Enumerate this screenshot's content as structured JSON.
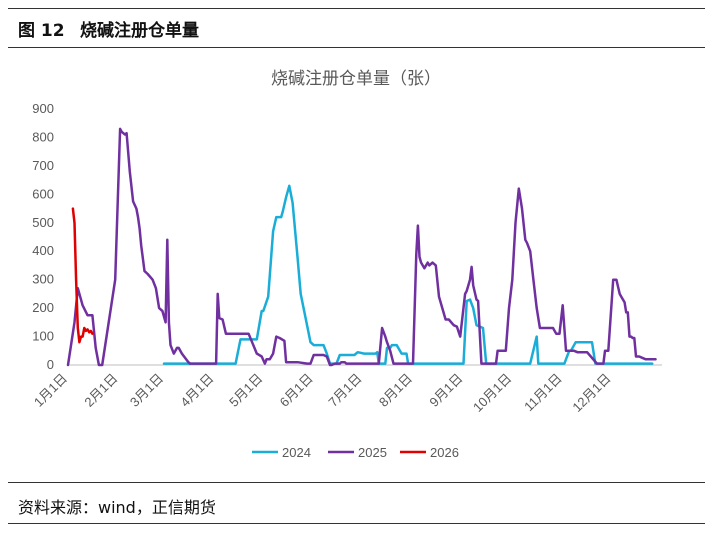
{
  "figure": {
    "label": "图 12",
    "title": "烧碱注册仓单量"
  },
  "source": "资料来源：wind，正信期货",
  "chart_data": {
    "type": "line",
    "title": "烧碱注册仓单量（张）",
    "xlabel": "",
    "ylabel": "",
    "ylim": [
      0,
      900
    ],
    "yticks": [
      "0",
      "100",
      "200",
      "300",
      "400",
      "500",
      "600",
      "700",
      "800",
      "900"
    ],
    "xlim": [
      1,
      366
    ],
    "xticks": [
      {
        "label": "1月1日",
        "day": 1
      },
      {
        "label": "2月1日",
        "day": 32
      },
      {
        "label": "3月1日",
        "day": 60
      },
      {
        "label": "4月1日",
        "day": 91
      },
      {
        "label": "5月1日",
        "day": 121
      },
      {
        "label": "6月1日",
        "day": 152
      },
      {
        "label": "7月1日",
        "day": 182
      },
      {
        "label": "8月1日",
        "day": 213
      },
      {
        "label": "9月1日",
        "day": 244
      },
      {
        "label": "10月1日",
        "day": 274
      },
      {
        "label": "11月1日",
        "day": 305
      },
      {
        "label": "12月1日",
        "day": 335
      }
    ],
    "grid": false,
    "legend_position": "bottom",
    "series": [
      {
        "name": "2024",
        "color": "#1AADD8",
        "x": [
          60,
          82,
          90,
          95,
          99,
          104,
          107,
          109,
          113,
          117,
          120,
          121,
          124,
          127,
          129,
          130,
          131,
          132,
          133,
          135,
          137,
          139,
          142,
          144,
          150,
          152,
          158,
          160,
          162,
          166,
          168,
          170,
          175,
          177,
          179,
          183,
          188,
          190,
          191,
          192,
          196,
          197,
          199,
          200,
          203,
          206,
          209,
          210,
          216,
          220,
          244,
          246,
          248,
          250,
          252,
          256,
          258,
          270,
          285,
          289,
          290,
          296,
          306,
          309,
          310,
          313,
          315,
          323,
          325,
          330,
          340,
          342,
          344,
          345,
          347,
          350,
          355,
          360
        ],
        "y": [
          5,
          5,
          5,
          5,
          5,
          5,
          90,
          90,
          90,
          90,
          190,
          190,
          240,
          470,
          520,
          520,
          520,
          520,
          540,
          590,
          630,
          570,
          380,
          250,
          80,
          70,
          70,
          40,
          5,
          5,
          35,
          35,
          35,
          35,
          45,
          40,
          40,
          40,
          45,
          5,
          5,
          60,
          60,
          70,
          70,
          40,
          40,
          5,
          5,
          5,
          5,
          225,
          230,
          200,
          140,
          130,
          5,
          5,
          5,
          100,
          5,
          5,
          5,
          50,
          50,
          80,
          80,
          80,
          5,
          5,
          5,
          5,
          5,
          5,
          5,
          5,
          5,
          5
        ]
      },
      {
        "name": "2025",
        "color": "#7030A0",
        "x": [
          1,
          5,
          7,
          10,
          13,
          14,
          16,
          18,
          20,
          22,
          30,
          33,
          34,
          36,
          37,
          39,
          41,
          43,
          44,
          45,
          46,
          48,
          50,
          53,
          55,
          57,
          59,
          61,
          62,
          63,
          64,
          66,
          68,
          69,
          71,
          75,
          76,
          77,
          78,
          84,
          92,
          93,
          94,
          96,
          98,
          102,
          104,
          110,
          112,
          117,
          120,
          122,
          123,
          125,
          127,
          129,
          131,
          134,
          135,
          136,
          140,
          142,
          148,
          150,
          152,
          158,
          160,
          162,
          163,
          165,
          166,
          167,
          168,
          169,
          171,
          172,
          173,
          180,
          190,
          192,
          194,
          196,
          197,
          199,
          201,
          203,
          205,
          207,
          210,
          212,
          213,
          215,
          216,
          217,
          218,
          220,
          222,
          223,
          225,
          227,
          229,
          231,
          233,
          235,
          238,
          240,
          242,
          245,
          246,
          248,
          249,
          250,
          252,
          253,
          255,
          256,
          257,
          258,
          260,
          262,
          264,
          265,
          266,
          268,
          270,
          272,
          274,
          276,
          278,
          280,
          282,
          283,
          285,
          287,
          289,
          291,
          294,
          296,
          297,
          299,
          301,
          302,
          303,
          305,
          307,
          309,
          310,
          312,
          314,
          317,
          319,
          320,
          326,
          330,
          331,
          333,
          336,
          338,
          340,
          341,
          343,
          344,
          345,
          346,
          347,
          348,
          349,
          350,
          352,
          356,
          362
        ],
        "y": [
          0,
          150,
          270,
          210,
          175,
          175,
          175,
          60,
          0,
          0,
          300,
          830,
          820,
          810,
          815,
          680,
          575,
          550,
          520,
          480,
          420,
          330,
          320,
          300,
          270,
          200,
          190,
          150,
          440,
          150,
          70,
          40,
          60,
          60,
          40,
          10,
          5,
          5,
          5,
          5,
          5,
          250,
          165,
          160,
          110,
          110,
          110,
          110,
          110,
          40,
          30,
          5,
          20,
          20,
          40,
          100,
          95,
          85,
          10,
          10,
          10,
          10,
          5,
          5,
          35,
          35,
          30,
          0,
          0,
          5,
          5,
          5,
          5,
          10,
          10,
          5,
          5,
          5,
          5,
          5,
          130,
          100,
          80,
          50,
          5,
          5,
          5,
          5,
          5,
          5,
          5,
          390,
          490,
          380,
          360,
          340,
          360,
          350,
          360,
          350,
          240,
          200,
          160,
          160,
          140,
          135,
          100,
          250,
          260,
          300,
          345,
          280,
          230,
          225,
          5,
          5,
          5,
          5,
          5,
          5,
          5,
          50,
          50,
          50,
          50,
          200,
          300,
          500,
          620,
          550,
          440,
          430,
          400,
          300,
          200,
          130,
          130,
          130,
          130,
          130,
          110,
          110,
          110,
          210,
          50,
          50,
          50,
          50,
          45,
          45,
          45,
          45,
          5,
          5,
          50,
          50,
          300,
          300,
          250,
          240,
          220,
          185,
          185,
          100,
          100,
          95,
          95,
          30,
          30,
          20,
          20
        ],
        "y_note": ""
      },
      {
        "name": "2026",
        "color": "#E00000",
        "x": [
          4,
          5,
          6,
          7,
          8,
          9,
          10,
          11,
          12,
          13,
          14,
          15,
          16
        ],
        "y": [
          550,
          500,
          300,
          130,
          80,
          100,
          100,
          130,
          120,
          125,
          115,
          120,
          110
        ]
      }
    ]
  }
}
